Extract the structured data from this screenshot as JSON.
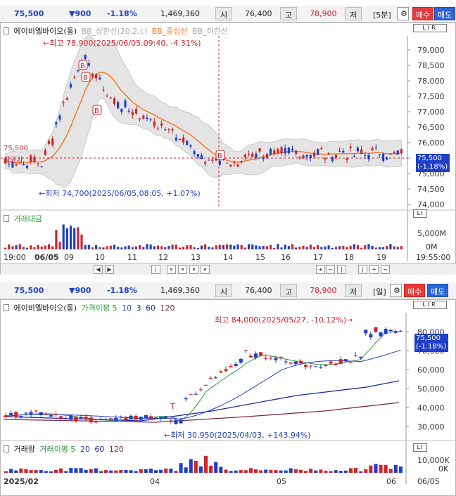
{
  "quote1": {
    "price": "75,500",
    "change": "▼900",
    "rate": "-1.18%",
    "volume": "1,469,360",
    "open_label": "시",
    "open": "76,400",
    "high_label": "고",
    "high": "78,900",
    "low_label": "저",
    "interval": "[5분]",
    "buy": "매수",
    "sell": "매도"
  },
  "chart1": {
    "legend_name": "에이비엘바이오(통)",
    "legend_items": [
      "BB_상한선(20,2,c)",
      "BB_중심선",
      "BB_하한선"
    ],
    "max_annot": "←최고 78,900(2025/06/05,09:40, -4.31%)",
    "min_annot": "←최저 74,700(2025/06/05,08:05, +1.07%)",
    "yticks": [
      "79,000",
      "78,500",
      "78,000",
      "77,500",
      "77,000",
      "76,500",
      "76,000",
      "75,500",
      "75,000",
      "74,500",
      "74,000"
    ],
    "ref_label": "75,500",
    "ref_sublabel": "평균가",
    "price_tag": "75,500",
    "rate_tag": "(-1.18%)",
    "lir": "LIR",
    "marker": "B",
    "sub_title": "거래대금",
    "sub_yticks": [
      "5,000M",
      "0M"
    ],
    "xticks": [
      "19:00",
      "06/05",
      "09",
      "10",
      "11",
      "12",
      "13",
      "14",
      "15",
      "16",
      "17",
      "18",
      "19",
      "19:55:00"
    ],
    "colors": {
      "up": "#d2222a",
      "down": "#1f3fc8",
      "mid": "#f07a2a",
      "band": "#e4e4e4"
    }
  },
  "quote2": {
    "price": "75,500",
    "change": "▼900",
    "rate": "-1.18%",
    "volume": "1,469,360",
    "open_label": "시",
    "open": "76,400",
    "high_label": "고",
    "high": "78,900",
    "low_label": "저",
    "interval": "[일]",
    "buy": "매수",
    "sell": "매도"
  },
  "chart2": {
    "legend_name": "에이비엘바이오(통)",
    "legend_ma": [
      "가격이평 5",
      "10",
      "3",
      "60",
      "120"
    ],
    "max_annot": "최고 84,000(2025/05/27, -10.12%)→",
    "min_annot": "←최저 30,950(2025/04/03, +143.94%)",
    "yticks": [
      "80,000",
      "70,000",
      "60,000",
      "50,000",
      "40,000",
      "30,000"
    ],
    "price_tag": "75,500",
    "rate_tag": "(-1.18%)",
    "lir": "LIR",
    "t_marker": "T",
    "sub_title": "거래량",
    "sub_ma": [
      "거래이평 5",
      "20",
      "60",
      "120"
    ],
    "sub_yticks": [
      "10,000K",
      "0K"
    ],
    "xticks": [
      "2025/02",
      "04",
      "05",
      "06",
      "06/05"
    ],
    "colors": {
      "up": "#d2222a",
      "down": "#1f3fc8",
      "ma5": "#2a9a3a",
      "ma20": "#1f3fc8",
      "ma60": "#1a2a9a",
      "ma120": "#7a2a4a"
    }
  }
}
